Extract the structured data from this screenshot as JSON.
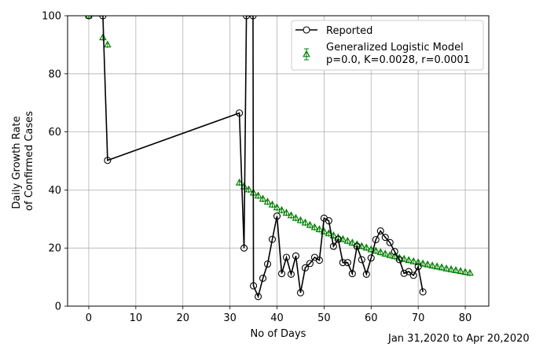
{
  "chart_data": {
    "type": "line",
    "title": "",
    "xlabel": "No of Days",
    "ylabel_line1": "Daily Growth Rate",
    "ylabel_line2": "of Confirmed Cases",
    "xlim": [
      -4.5,
      85
    ],
    "ylim": [
      0,
      100
    ],
    "xticks": [
      0,
      10,
      20,
      30,
      40,
      50,
      60,
      70,
      80
    ],
    "yticks": [
      0,
      20,
      40,
      60,
      80,
      100
    ],
    "grid": true,
    "legend_position": "upper right",
    "footnote": "Jan 31,2020 to Apr 20,2020",
    "series": [
      {
        "name": "Reported",
        "color": "#000000",
        "marker": "circle",
        "points": [
          [
            0,
            100
          ],
          [
            3,
            100
          ],
          [
            4,
            50.2
          ],
          [
            32,
            66.5
          ],
          [
            33,
            20
          ],
          [
            33.5,
            100
          ],
          [
            34.9,
            100
          ],
          [
            35,
            7
          ],
          [
            36,
            3.3
          ],
          [
            37,
            9.6
          ],
          [
            38,
            14.5
          ],
          [
            39,
            23
          ],
          [
            40,
            31
          ],
          [
            41,
            11.2
          ],
          [
            42,
            16.8
          ],
          [
            43,
            11
          ],
          [
            44,
            17.3
          ],
          [
            45,
            4.6
          ],
          [
            46,
            13.2
          ],
          [
            47,
            14.7
          ],
          [
            48,
            16.8
          ],
          [
            49,
            15.8
          ],
          [
            50,
            30.3
          ],
          [
            51,
            29.4
          ],
          [
            52,
            20.6
          ],
          [
            53,
            23
          ],
          [
            54,
            15
          ],
          [
            55,
            15
          ],
          [
            56,
            11.2
          ],
          [
            57,
            20.6
          ],
          [
            58,
            16
          ],
          [
            59,
            11
          ],
          [
            60,
            16.6
          ],
          [
            61,
            22.9
          ],
          [
            62,
            25.9
          ],
          [
            63,
            23.7
          ],
          [
            64,
            21.9
          ],
          [
            65,
            18.8
          ],
          [
            66,
            16
          ],
          [
            67,
            11.3
          ],
          [
            68,
            11.9
          ],
          [
            69,
            10.6
          ],
          [
            70,
            13.6
          ],
          [
            71,
            4.9
          ]
        ]
      },
      {
        "name": "Generalized Logistic Model",
        "label_line2": "p=0.0, K=0.0028, r=0.0001",
        "color": "#008000",
        "marker": "triangle",
        "error_bars": true,
        "points": [
          [
            0,
            100
          ],
          [
            3,
            92.5
          ],
          [
            4,
            90
          ],
          [
            32,
            42.5
          ],
          [
            33,
            41.2
          ],
          [
            34,
            40.1
          ],
          [
            35,
            39
          ],
          [
            36,
            38
          ],
          [
            37,
            36.9
          ],
          [
            38,
            35.9
          ],
          [
            39,
            34.9
          ],
          [
            40,
            33.9
          ],
          [
            41,
            33
          ],
          [
            42,
            32.1
          ],
          [
            43,
            31.2
          ],
          [
            44,
            30.3
          ],
          [
            45,
            29.5
          ],
          [
            46,
            28.7
          ],
          [
            47,
            27.9
          ],
          [
            48,
            27.1
          ],
          [
            49,
            26.4
          ],
          [
            50,
            25.7
          ],
          [
            51,
            25
          ],
          [
            52,
            24.3
          ],
          [
            53,
            23.6
          ],
          [
            54,
            23
          ],
          [
            55,
            22.4
          ],
          [
            56,
            21.8
          ],
          [
            57,
            21.2
          ],
          [
            58,
            20.6
          ],
          [
            59,
            20.1
          ],
          [
            60,
            19.5
          ],
          [
            61,
            19
          ],
          [
            62,
            18.5
          ],
          [
            63,
            18
          ],
          [
            64,
            17.5
          ],
          [
            65,
            17.1
          ],
          [
            66,
            16.6
          ],
          [
            67,
            16.2
          ],
          [
            68,
            15.8
          ],
          [
            69,
            15.4
          ],
          [
            70,
            15
          ],
          [
            71,
            14.6
          ],
          [
            72,
            14.3
          ],
          [
            73,
            13.9
          ],
          [
            74,
            13.6
          ],
          [
            75,
            13.3
          ],
          [
            76,
            12.9
          ],
          [
            77,
            12.6
          ],
          [
            78,
            12.3
          ],
          [
            79,
            12
          ],
          [
            80,
            11.7
          ],
          [
            81,
            11.4
          ]
        ]
      }
    ]
  }
}
